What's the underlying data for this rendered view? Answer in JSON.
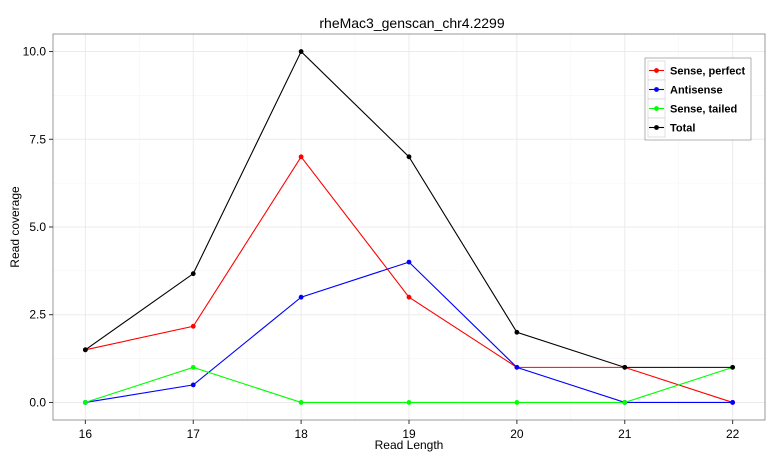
{
  "chart_data": {
    "type": "line",
    "title": "rheMac3_genscan_chr4.2299",
    "xlabel": "Read Length",
    "ylabel": "Read coverage",
    "x": [
      16,
      17,
      18,
      19,
      20,
      21,
      22
    ],
    "xlim": [
      15.7,
      22.3
    ],
    "ylim": [
      -0.5,
      10.5
    ],
    "yticks": [
      0.0,
      2.5,
      5.0,
      7.5,
      10.0
    ],
    "ytick_labels": [
      "0.0",
      "2.5",
      "5.0",
      "7.5",
      "10.0"
    ],
    "xtick_labels": [
      "16",
      "17",
      "18",
      "19",
      "20",
      "21",
      "22"
    ],
    "grid": true,
    "legend_position": "top-right",
    "series": [
      {
        "name": "Sense, perfect",
        "color": "#ff0000",
        "values": [
          1.5,
          2.17,
          7.0,
          3.0,
          1.0,
          1.0,
          0.0
        ]
      },
      {
        "name": "Antisense",
        "color": "#0000ff",
        "values": [
          0.0,
          0.5,
          3.0,
          4.0,
          1.0,
          0.0,
          0.0
        ]
      },
      {
        "name": "Sense, tailed",
        "color": "#00ff00",
        "values": [
          0.0,
          1.0,
          0.0,
          0.0,
          0.0,
          0.0,
          1.0
        ]
      },
      {
        "name": "Total",
        "color": "#000000",
        "values": [
          1.5,
          3.67,
          10.0,
          7.0,
          2.0,
          1.0,
          1.0
        ]
      }
    ]
  }
}
